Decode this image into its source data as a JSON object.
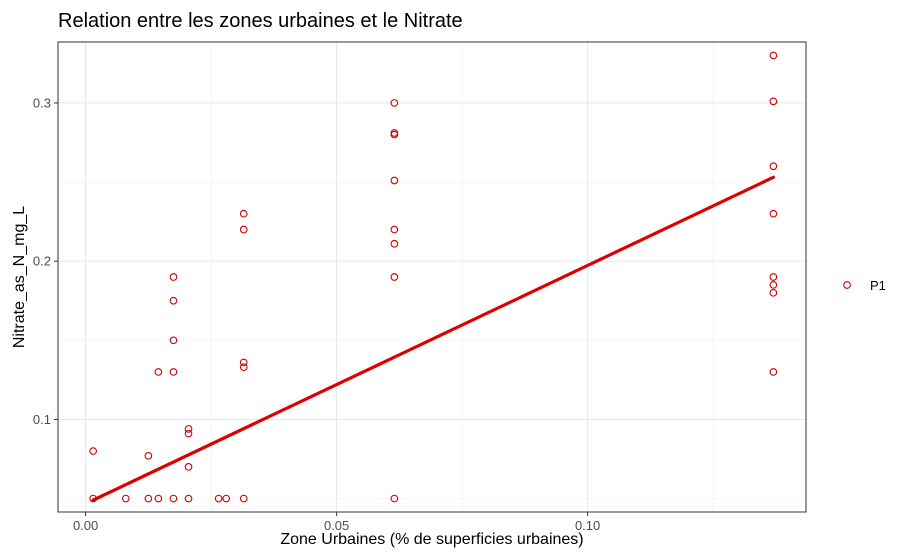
{
  "chart_data": {
    "type": "scatter",
    "title": "Relation entre les zones urbaines et le Nitrate",
    "xlabel": "Zone Urbaines (% de superficies urbaines)",
    "ylabel": "Nitrate_as_N_mg_L",
    "xlim": [
      -0.0055,
      0.1435
    ],
    "ylim": [
      0.0415,
      0.3385
    ],
    "x_ticks": [
      0.0,
      0.05,
      0.1
    ],
    "x_tick_labels": [
      "0.00",
      "0.05",
      "0.10"
    ],
    "y_ticks": [
      0.1,
      0.2,
      0.3
    ],
    "y_tick_labels": [
      "0.1",
      "0.2",
      "0.3"
    ],
    "grid": true,
    "legend_position": "right",
    "series": [
      {
        "name": "P1",
        "color": "#cc0000",
        "marker": "open-circle",
        "points": [
          [
            0.0015,
            0.08
          ],
          [
            0.0015,
            0.05
          ],
          [
            0.008,
            0.05
          ],
          [
            0.0125,
            0.077
          ],
          [
            0.0125,
            0.05
          ],
          [
            0.0145,
            0.13
          ],
          [
            0.0145,
            0.05
          ],
          [
            0.0175,
            0.19
          ],
          [
            0.0175,
            0.175
          ],
          [
            0.0175,
            0.15
          ],
          [
            0.0175,
            0.13
          ],
          [
            0.0175,
            0.05
          ],
          [
            0.0205,
            0.094
          ],
          [
            0.0205,
            0.091
          ],
          [
            0.0205,
            0.07
          ],
          [
            0.0205,
            0.05
          ],
          [
            0.0265,
            0.05
          ],
          [
            0.028,
            0.05
          ],
          [
            0.0315,
            0.23
          ],
          [
            0.0315,
            0.22
          ],
          [
            0.0315,
            0.136
          ],
          [
            0.0315,
            0.133
          ],
          [
            0.0315,
            0.05
          ],
          [
            0.0615,
            0.3
          ],
          [
            0.0615,
            0.281
          ],
          [
            0.0615,
            0.28
          ],
          [
            0.0615,
            0.251
          ],
          [
            0.0615,
            0.22
          ],
          [
            0.0615,
            0.211
          ],
          [
            0.0615,
            0.19
          ],
          [
            0.0615,
            0.05
          ],
          [
            0.137,
            0.33
          ],
          [
            0.137,
            0.301
          ],
          [
            0.137,
            0.26
          ],
          [
            0.137,
            0.23
          ],
          [
            0.137,
            0.19
          ],
          [
            0.137,
            0.185
          ],
          [
            0.137,
            0.18
          ],
          [
            0.137,
            0.13
          ]
        ]
      }
    ],
    "trendline": {
      "type": "linear",
      "color": "#dd0000",
      "x": [
        0.0015,
        0.137
      ],
      "y": [
        0.049,
        0.253
      ]
    }
  }
}
